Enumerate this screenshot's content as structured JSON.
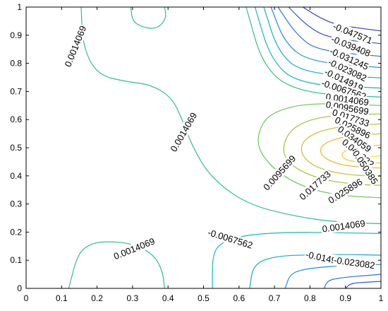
{
  "chart_data": {
    "type": "contour",
    "title": "",
    "xlabel": "",
    "ylabel": "",
    "xlim": [
      0,
      1
    ],
    "ylim": [
      0,
      1
    ],
    "x_ticks": [
      "0",
      "0.1",
      "0.2",
      "0.3",
      "0.4",
      "0.5",
      "0.6",
      "0.7",
      "0.8",
      "0.9",
      "1"
    ],
    "y_ticks": [
      "0",
      "0.1",
      "0.2",
      "0.3",
      "0.4",
      "0.5",
      "0.6",
      "0.7",
      "0.8",
      "0.9",
      "1"
    ],
    "colormap": "parula",
    "contour_levels": [
      "-0.047571",
      "-0.039408",
      "-0.031245",
      "-0.023082",
      "-0.014919",
      "-0.0067562",
      "0.0014069",
      "0.0095699",
      "0.017733",
      "0.025896",
      "0.034059",
      "0.042222",
      "0.050385"
    ],
    "level_colors": {
      "-0.047571": "#3b3ab3",
      "-0.039408": "#3a55d8",
      "-0.031245": "#2f70e6",
      "-0.023082": "#1f8fe0",
      "-0.014919": "#12a9d0",
      "-0.0067562": "#14b9b3",
      "0.0014069": "#32bf86",
      "0.0095699": "#6cc35a",
      "0.017733": "#9cc23b",
      "0.025896": "#c4bd2f",
      "0.034059": "#e4b72c",
      "0.042222": "#f5c824",
      "0.050385": "#f4e21a"
    },
    "contour_labels": [
      {
        "text": "-0.047571",
        "x": 0.92,
        "y": 0.905,
        "angle": -22
      },
      {
        "text": "-0.039408",
        "x": 0.915,
        "y": 0.86,
        "angle": -22
      },
      {
        "text": "-0.031245",
        "x": 0.91,
        "y": 0.815,
        "angle": -24
      },
      {
        "text": "-0.023082",
        "x": 0.905,
        "y": 0.775,
        "angle": -25
      },
      {
        "text": "-0.014919",
        "x": 0.895,
        "y": 0.74,
        "angle": -25
      },
      {
        "text": "-0.0067562",
        "x": 0.895,
        "y": 0.705,
        "angle": -18
      },
      {
        "text": "0.0014069",
        "x": 0.905,
        "y": 0.67,
        "angle": -8
      },
      {
        "text": "0.0095699",
        "x": 0.905,
        "y": 0.64,
        "angle": -10
      },
      {
        "text": "0.017733",
        "x": 0.915,
        "y": 0.605,
        "angle": -18
      },
      {
        "text": "0.025896",
        "x": 0.92,
        "y": 0.57,
        "angle": -26
      },
      {
        "text": "0.034059",
        "x": 0.925,
        "y": 0.53,
        "angle": -35
      },
      {
        "text": "0.042222",
        "x": 0.935,
        "y": 0.48,
        "angle": -40
      },
      {
        "text": "0.050385",
        "x": 0.955,
        "y": 0.43,
        "angle": -57
      },
      {
        "text": "0.0014069",
        "x": 0.14,
        "y": 0.86,
        "angle": 68
      },
      {
        "text": "0.0014069",
        "x": 0.445,
        "y": 0.555,
        "angle": 60
      },
      {
        "text": "0.0095699",
        "x": 0.715,
        "y": 0.41,
        "angle": 48
      },
      {
        "text": "0.017733",
        "x": 0.815,
        "y": 0.365,
        "angle": 42
      },
      {
        "text": "0.025896",
        "x": 0.9,
        "y": 0.345,
        "angle": 32
      },
      {
        "text": "0.0014069",
        "x": 0.895,
        "y": 0.22,
        "angle": 8
      },
      {
        "text": "-0.0067562",
        "x": 0.575,
        "y": 0.175,
        "angle": -17
      },
      {
        "text": "-0.014919",
        "x": 0.845,
        "y": 0.105,
        "angle": -12
      },
      {
        "text": "-0.023082",
        "x": 0.925,
        "y": 0.09,
        "angle": -8
      },
      {
        "text": "0.0014069",
        "x": 0.305,
        "y": 0.14,
        "angle": 22
      }
    ],
    "contour_lines": [
      {
        "level": "-0.047571",
        "points": [
          [
            0.78,
            1.0
          ],
          [
            0.83,
            0.96
          ],
          [
            0.88,
            0.935
          ],
          [
            1.0,
            0.915
          ]
        ]
      },
      {
        "level": "-0.039408",
        "points": [
          [
            0.74,
            1.0
          ],
          [
            0.79,
            0.935
          ],
          [
            0.85,
            0.89
          ],
          [
            1.0,
            0.87
          ]
        ]
      },
      {
        "level": "-0.031245",
        "points": [
          [
            0.71,
            1.0
          ],
          [
            0.76,
            0.905
          ],
          [
            0.82,
            0.845
          ],
          [
            1.0,
            0.825
          ]
        ]
      },
      {
        "level": "-0.023082",
        "points": [
          [
            0.69,
            1.0
          ],
          [
            0.73,
            0.87
          ],
          [
            0.8,
            0.805
          ],
          [
            1.0,
            0.785
          ]
        ]
      },
      {
        "level": "-0.014919",
        "points": [
          [
            0.67,
            1.0
          ],
          [
            0.71,
            0.84
          ],
          [
            0.78,
            0.765
          ],
          [
            1.0,
            0.748
          ]
        ]
      },
      {
        "level": "-0.0067562",
        "points": [
          [
            0.645,
            1.0
          ],
          [
            0.69,
            0.81
          ],
          [
            0.77,
            0.725
          ],
          [
            1.0,
            0.712
          ]
        ]
      },
      {
        "level": "0.0014069",
        "points": [
          [
            0.62,
            1.0
          ],
          [
            0.67,
            0.78
          ],
          [
            0.77,
            0.695
          ],
          [
            1.0,
            0.68
          ]
        ]
      },
      {
        "level": "0.0095699",
        "points": [
          [
            1.0,
            0.65
          ],
          [
            0.8,
            0.66
          ],
          [
            0.7,
            0.63
          ],
          [
            0.66,
            0.58
          ],
          [
            0.65,
            0.5
          ],
          [
            0.7,
            0.42
          ],
          [
            0.78,
            0.36
          ],
          [
            0.88,
            0.33
          ],
          [
            1.0,
            0.322
          ]
        ]
      },
      {
        "level": "0.017733",
        "points": [
          [
            1.0,
            0.62
          ],
          [
            0.84,
            0.615
          ],
          [
            0.75,
            0.575
          ],
          [
            0.72,
            0.5
          ],
          [
            0.74,
            0.44
          ],
          [
            0.82,
            0.39
          ],
          [
            0.92,
            0.37
          ],
          [
            1.0,
            0.366
          ]
        ]
      },
      {
        "level": "0.025896",
        "points": [
          [
            1.0,
            0.585
          ],
          [
            0.87,
            0.575
          ],
          [
            0.79,
            0.54
          ],
          [
            0.77,
            0.49
          ],
          [
            0.8,
            0.44
          ],
          [
            0.87,
            0.41
          ],
          [
            0.95,
            0.4
          ],
          [
            1.0,
            0.398
          ]
        ]
      },
      {
        "level": "0.034059",
        "points": [
          [
            1.0,
            0.55
          ],
          [
            0.89,
            0.54
          ],
          [
            0.83,
            0.51
          ],
          [
            0.83,
            0.47
          ],
          [
            0.88,
            0.44
          ],
          [
            0.95,
            0.43
          ],
          [
            1.0,
            0.428
          ]
        ]
      },
      {
        "level": "0.042222",
        "points": [
          [
            1.0,
            0.51
          ],
          [
            0.92,
            0.5
          ],
          [
            0.885,
            0.48
          ],
          [
            0.9,
            0.455
          ],
          [
            0.95,
            0.447
          ],
          [
            1.0,
            0.445
          ]
        ]
      },
      {
        "level": "0.050385",
        "points": [
          [
            1.0,
            0.472
          ],
          [
            0.955,
            0.466
          ],
          [
            0.94,
            0.455
          ],
          [
            0.96,
            0.448
          ],
          [
            1.0,
            0.446
          ]
        ]
      },
      {
        "level": "0.0014069",
        "points": [
          [
            0.155,
            1.0
          ],
          [
            0.16,
            0.86
          ],
          [
            0.2,
            0.76
          ],
          [
            0.28,
            0.735
          ],
          [
            0.35,
            0.725
          ],
          [
            0.41,
            0.68
          ],
          [
            0.44,
            0.6
          ],
          [
            0.47,
            0.5
          ],
          [
            0.52,
            0.395
          ],
          [
            0.62,
            0.3
          ],
          [
            0.76,
            0.255
          ],
          [
            0.88,
            0.235
          ],
          [
            1.0,
            0.23
          ]
        ]
      },
      {
        "level": "0.0014069",
        "points": [
          [
            0.295,
            1.0
          ],
          [
            0.3,
            0.95
          ],
          [
            0.325,
            0.93
          ],
          [
            0.36,
            0.922
          ],
          [
            0.385,
            0.94
          ],
          [
            0.395,
            0.97
          ],
          [
            0.39,
            1.0
          ]
        ]
      },
      {
        "level": "-0.0067562",
        "points": [
          [
            0.525,
            0.0
          ],
          [
            0.525,
            0.12
          ],
          [
            0.55,
            0.165
          ],
          [
            0.62,
            0.19
          ],
          [
            0.74,
            0.2
          ],
          [
            0.88,
            0.198
          ],
          [
            1.0,
            0.195
          ]
        ]
      },
      {
        "level": "-0.014919",
        "points": [
          [
            0.63,
            0.0
          ],
          [
            0.64,
            0.085
          ],
          [
            0.7,
            0.115
          ],
          [
            0.82,
            0.12
          ],
          [
            0.92,
            0.12
          ],
          [
            1.0,
            0.118
          ]
        ]
      },
      {
        "level": "-0.023082",
        "points": [
          [
            0.73,
            0.0
          ],
          [
            0.745,
            0.055
          ],
          [
            0.8,
            0.072
          ],
          [
            0.9,
            0.082
          ],
          [
            1.0,
            0.085
          ]
        ]
      },
      {
        "level": "-0.031245",
        "points": [
          [
            0.84,
            0.0
          ],
          [
            0.85,
            0.03
          ],
          [
            0.9,
            0.04
          ],
          [
            1.0,
            0.05
          ]
        ]
      },
      {
        "level": "-0.039408",
        "points": [
          [
            0.9,
            0.0
          ],
          [
            0.915,
            0.018
          ],
          [
            0.96,
            0.022
          ],
          [
            1.0,
            0.025
          ]
        ]
      },
      {
        "level": "0.0014069",
        "points": [
          [
            0.12,
            0.0
          ],
          [
            0.145,
            0.12
          ],
          [
            0.175,
            0.155
          ],
          [
            0.22,
            0.168
          ],
          [
            0.3,
            0.16
          ],
          [
            0.36,
            0.12
          ],
          [
            0.385,
            0.06
          ],
          [
            0.39,
            0.0
          ]
        ]
      }
    ]
  }
}
